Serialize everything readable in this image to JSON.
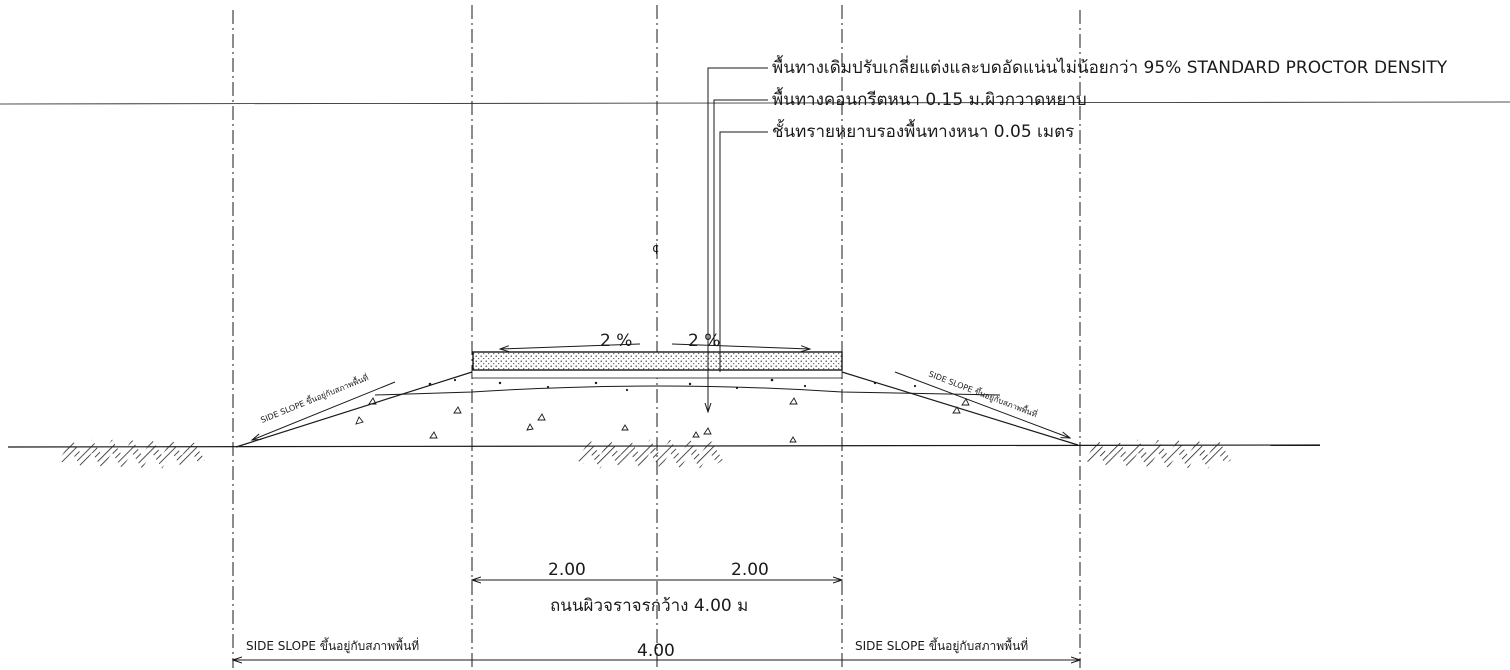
{
  "callouts": {
    "subgrade": "พื้นทางเดิมปรับเกลี่ยแต่งและบดอัดแน่นไม่น้อยกว่า 95% STANDARD PROCTOR DENSITY",
    "concrete": "พื้นทางคอนกรีตหนา 0.15 ม.ผิวกวาดหยาบ",
    "sand": "ชั้นทรายหยาบรองพื้นทางหนา 0.05 เมตร"
  },
  "slopes": {
    "left_percent": "2 %",
    "right_percent": "2 %",
    "left_side_slope": "SIDE SLOPE ขึ้นอยู่กับสภาพพื้นที่",
    "right_side_slope": "SIDE SLOPE ขึ้นอยู่กับสภาพพื้นที่"
  },
  "dimensions": {
    "left_half": "2.00",
    "right_half": "2.00",
    "road_width_label": "ถนนผิวจราจรกว้าง 4.00 ม",
    "bottom_left": "SIDE SLOPE ขึ้นอยู่กับสภาพพื้นที่",
    "bottom_center": "4.00",
    "bottom_right": "SIDE SLOPE ขึ้นอยู่กับสภาพพื้นที่"
  },
  "centerline_mark": "¢"
}
